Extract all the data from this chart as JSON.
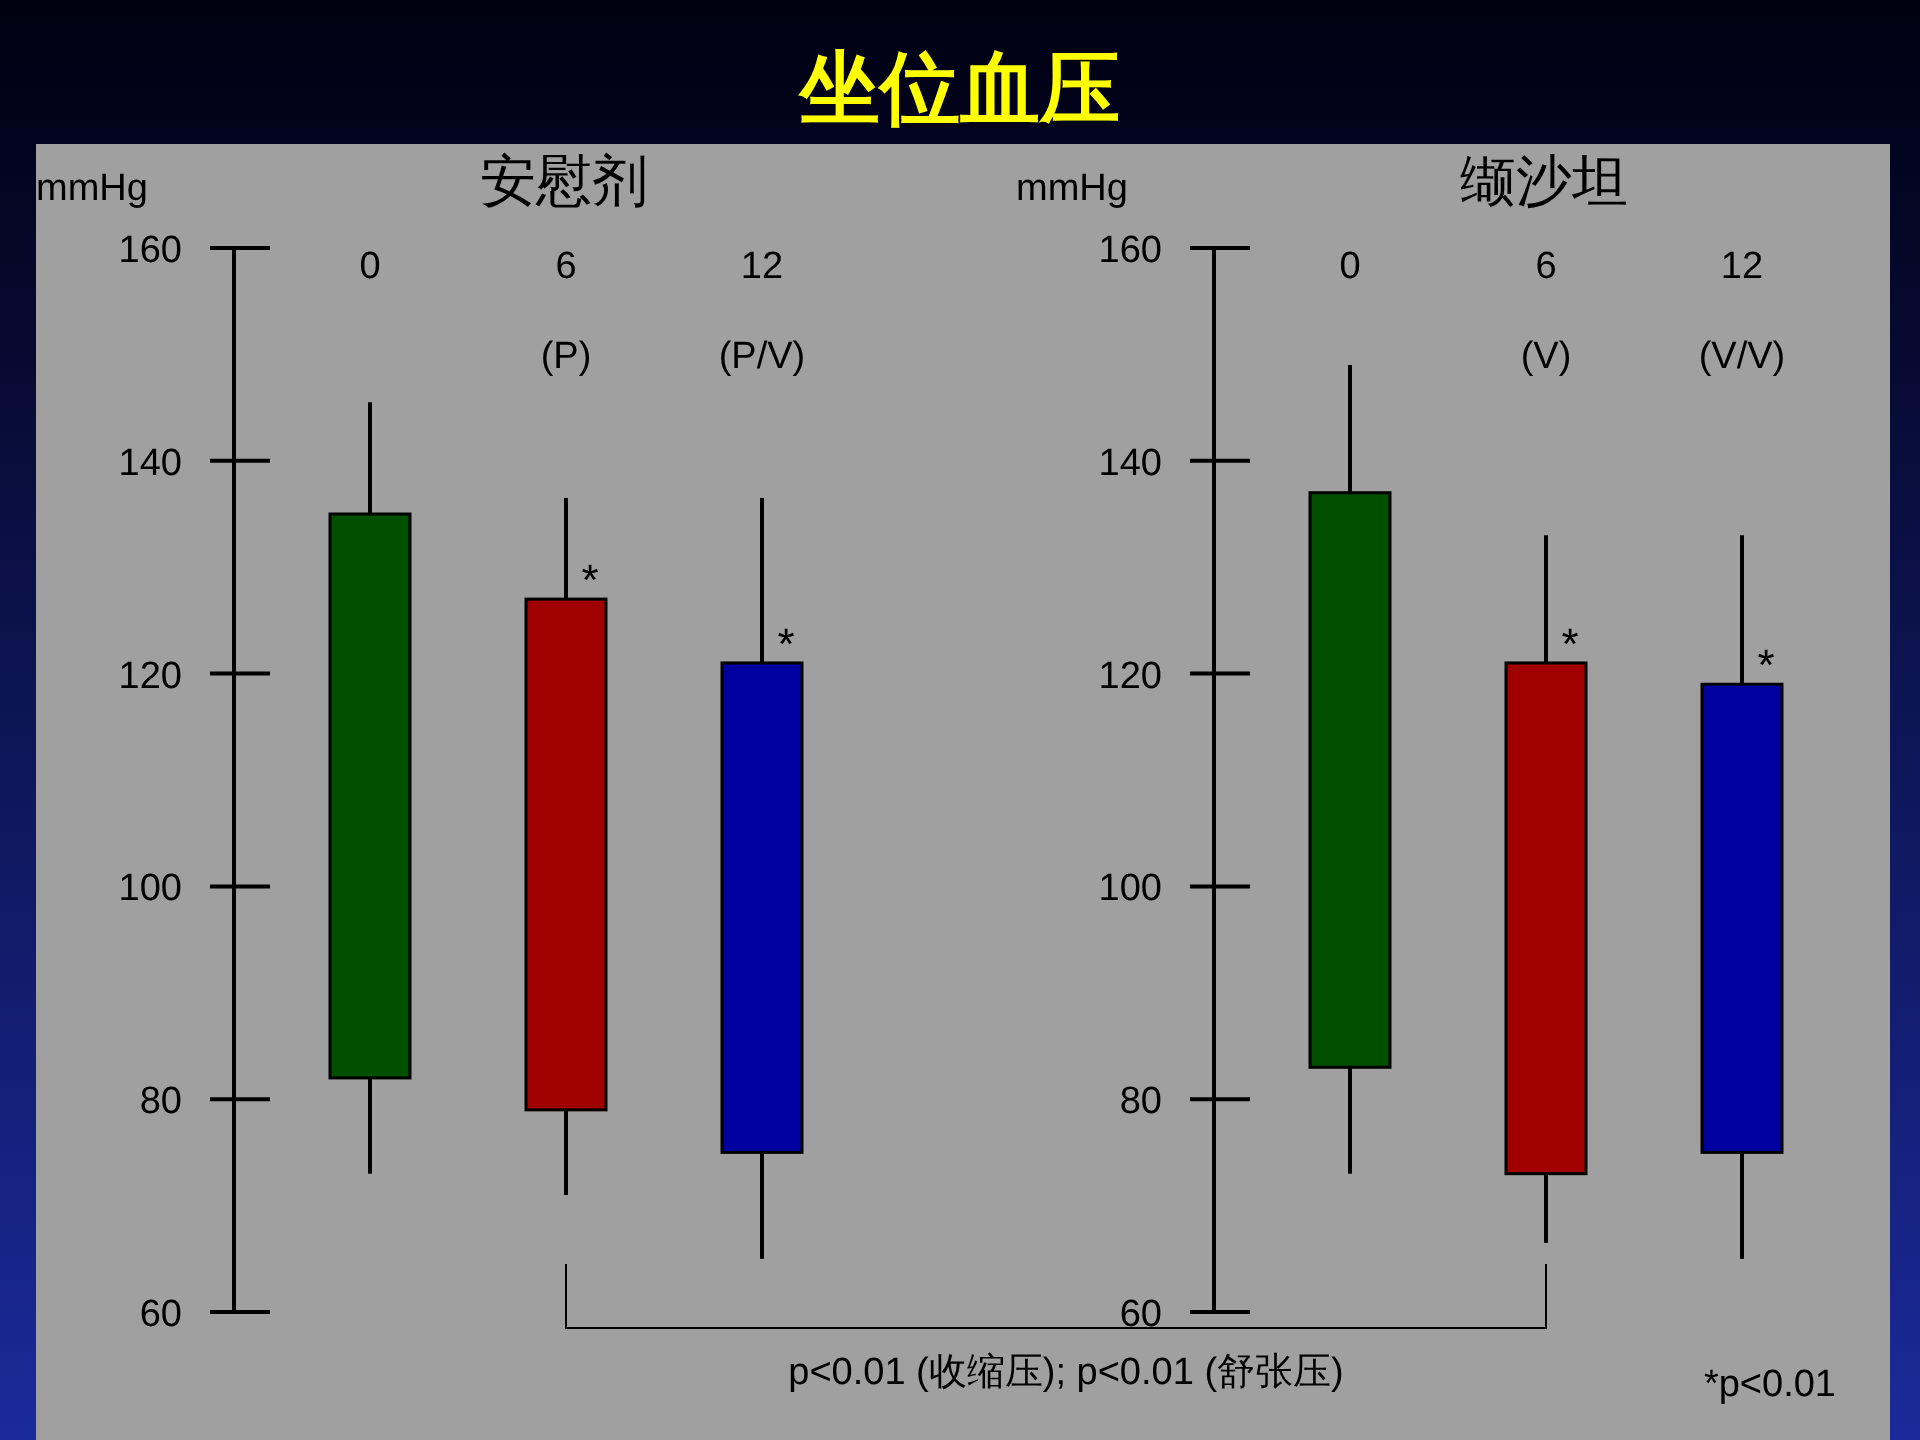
{
  "chart_data": [
    {
      "type": "bar",
      "title": "安慰剂",
      "ylabel": "mmHg",
      "categories": [
        "0",
        "6\n(P)",
        "12\n(P/V)"
      ],
      "base": [
        82,
        79,
        75
      ],
      "values": [
        53,
        48,
        46
      ],
      "errors": [
        [
          73,
          145.5
        ],
        [
          71,
          136.5
        ],
        [
          65,
          136.5
        ]
      ],
      "colors": [
        "#005000",
        "#a00000",
        "#0000a0"
      ],
      "ylim": [
        60,
        160
      ],
      "yticks": [
        60,
        80,
        100,
        120,
        140,
        160
      ],
      "grid": false,
      "annotations": [
        "坐位血压",
        {
          "text": "*",
          "x": "6\n(P)",
          "y": 127
        },
        {
          "text": "*",
          "x": "12\n(P/V)",
          "y": 121
        },
        "p<0.01 (收缩压); p<0.01 (舒张压)"
      ]
    },
    {
      "type": "bar",
      "title": "缬沙坦",
      "ylabel": "mmHg",
      "categories": [
        "0",
        "6\n(V)",
        "12\n(V/V)"
      ],
      "base": [
        83,
        73,
        75
      ],
      "values": [
        54,
        48,
        44
      ],
      "errors": [
        [
          73,
          149
        ],
        [
          66.5,
          133
        ],
        [
          65,
          133
        ]
      ],
      "colors": [
        "#005000",
        "#a00000",
        "#0000a0"
      ],
      "ylim": [
        60,
        160
      ],
      "yticks": [
        60,
        80,
        100,
        120,
        140,
        160
      ],
      "grid": false,
      "annotations": [
        {
          "text": "*",
          "x": "6\n(V)",
          "y": 121
        },
        {
          "text": "*",
          "x": "12\n(V/V)",
          "y": 119
        },
        "*p<0.01"
      ]
    }
  ]
}
